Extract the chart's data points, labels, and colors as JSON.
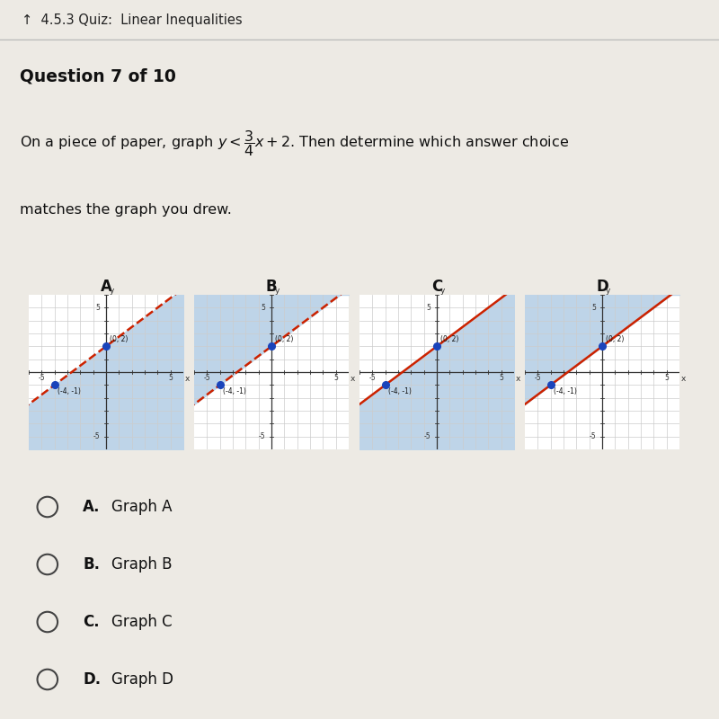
{
  "title_nav": "4.5.3 Quiz:  Linear Inequalities",
  "question": "Question 7 of 10",
  "slope": 0.75,
  "intercept": 2,
  "points": [
    [
      -4,
      -1
    ],
    [
      0,
      2
    ]
  ],
  "graph_labels": [
    "A",
    "B",
    "C",
    "D"
  ],
  "shade_below": [
    true,
    false,
    true,
    false
  ],
  "dashed": [
    true,
    true,
    false,
    false
  ],
  "shade_color": "#bed4e8",
  "line_color": "#cc2200",
  "dot_color": "#1a44bb",
  "bg_page": "#edeae4",
  "bg_nav": "#d8d5cf",
  "bg_graph": "#ffffff",
  "answer_choices": [
    "A.",
    "B.",
    "C.",
    "D."
  ],
  "answer_labels": [
    "Graph A",
    "Graph B",
    "Graph C",
    "Graph D"
  ],
  "xlim": [
    -6,
    6
  ],
  "ylim": [
    -6,
    6
  ],
  "axis_color": "#333333",
  "grid_color": "#cccccc",
  "nav_text_color": "#222222",
  "text_color": "#111111"
}
